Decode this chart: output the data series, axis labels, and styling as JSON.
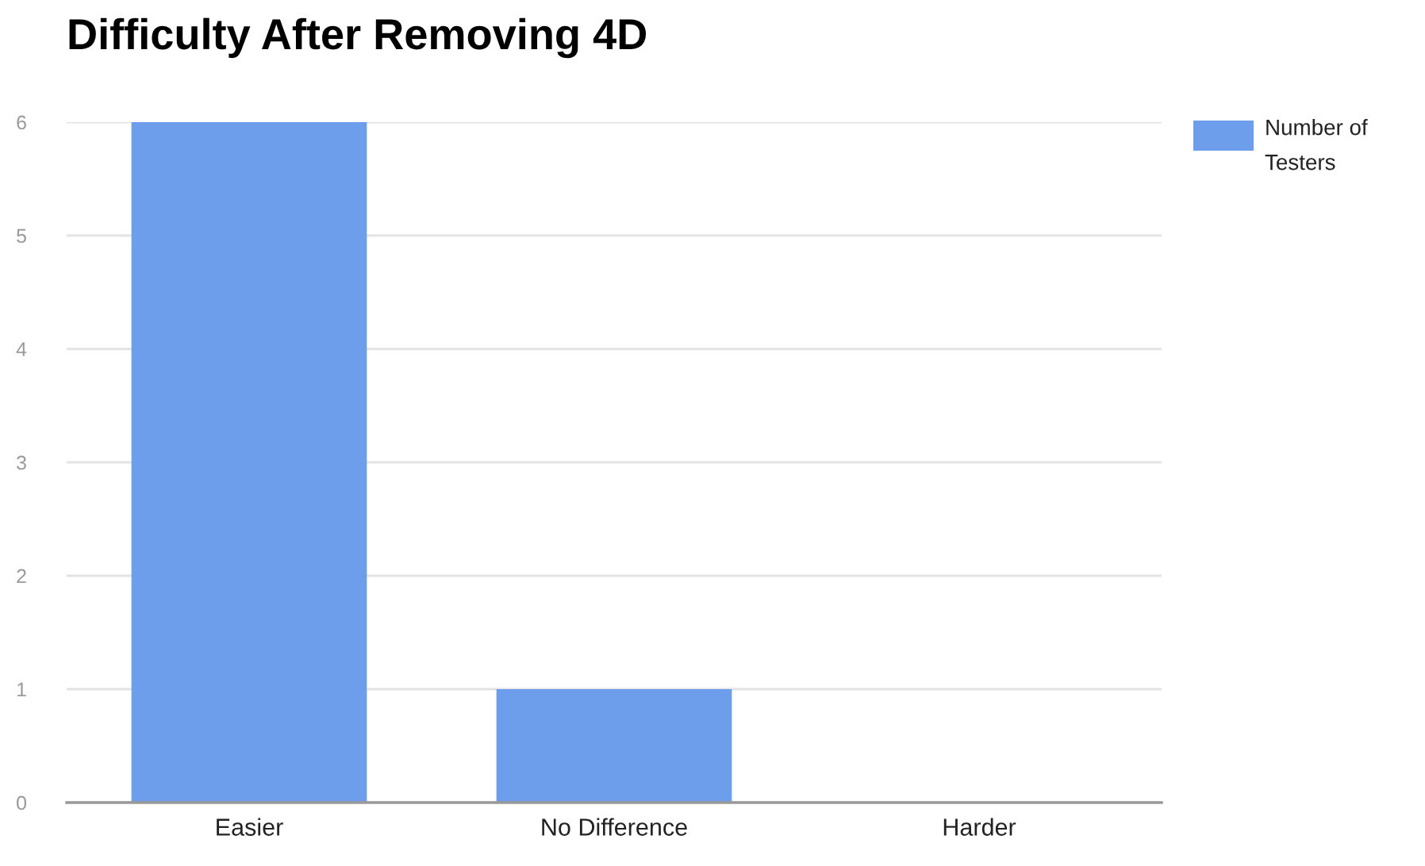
{
  "chart_data": {
    "type": "bar",
    "title": "Difficulty After Removing 4D",
    "categories": [
      "Easier",
      "No Difference",
      "Harder"
    ],
    "series": [
      {
        "name": "Number of Testers",
        "color": "#6d9eeb",
        "values": [
          6,
          1,
          0
        ]
      }
    ],
    "ylim": [
      0,
      6
    ],
    "yticks": [
      0,
      1,
      2,
      3,
      4,
      5,
      6
    ],
    "grid": "y",
    "legend": "top right"
  }
}
